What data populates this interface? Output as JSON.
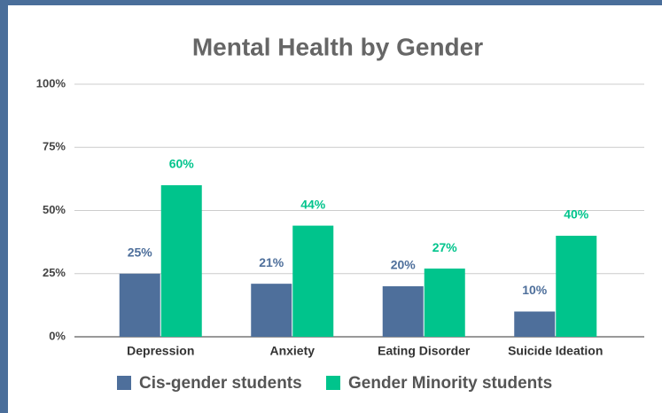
{
  "chart_data": {
    "type": "bar",
    "title": "Mental Health by Gender",
    "categories": [
      "Depression",
      "Anxiety",
      "Eating Disorder",
      "Suicide Ideation"
    ],
    "series": [
      {
        "name": "Cis-gender students",
        "color": "#4e6f9b",
        "values": [
          25,
          21,
          20,
          10
        ],
        "value_labels": [
          "25%",
          "21%",
          "20%",
          "10%"
        ]
      },
      {
        "name": "Gender Minority students",
        "color": "#00c48c",
        "values": [
          60,
          44,
          27,
          40
        ],
        "value_labels": [
          "60%",
          "44%",
          "27%",
          "40%"
        ]
      }
    ],
    "ylim": [
      0,
      100
    ],
    "yticks": [
      {
        "value": 0,
        "label": "0%"
      },
      {
        "value": 25,
        "label": "25%"
      },
      {
        "value": 50,
        "label": "50%"
      },
      {
        "value": 75,
        "label": "75%"
      },
      {
        "value": 100,
        "label": "100%"
      }
    ],
    "grid": true,
    "legend": "bottom"
  }
}
